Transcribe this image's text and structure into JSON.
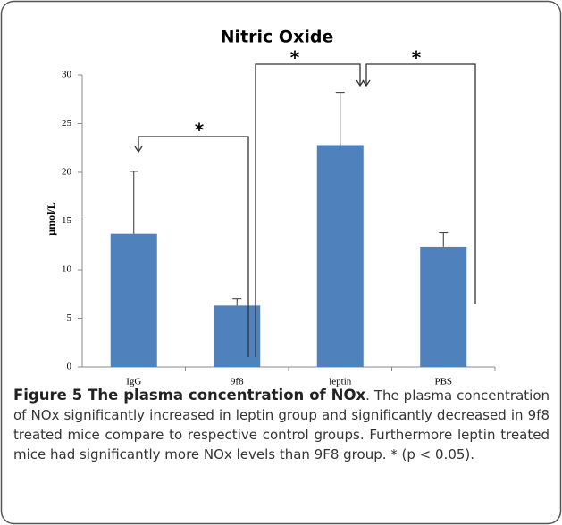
{
  "chart_data": {
    "type": "bar",
    "title": "Nitric Oxide",
    "y_label": "μmol/L",
    "categories": [
      "IgG",
      "9f8",
      "leptin",
      "PBS"
    ],
    "values": [
      13.7,
      6.3,
      22.8,
      12.3
    ],
    "errors": [
      6.4,
      0.7,
      5.4,
      1.5
    ],
    "color": "#4f81bd",
    "ylim": [
      0,
      30
    ],
    "yticks": [
      0,
      5,
      10,
      15,
      20,
      25,
      30
    ],
    "grid": false,
    "annotations": [
      "*",
      "*",
      "*"
    ]
  },
  "caption": {
    "label": "Figure 5 The plasma concentration of NOx",
    "text": ". The plasma concentration of NOx significantly increased in leptin group and significantly decreased in 9f8 treated mice compare to respective control groups. Furthermore leptin treated mice had significantly more NOx levels than 9F8 group. * (p < 0.05)."
  }
}
